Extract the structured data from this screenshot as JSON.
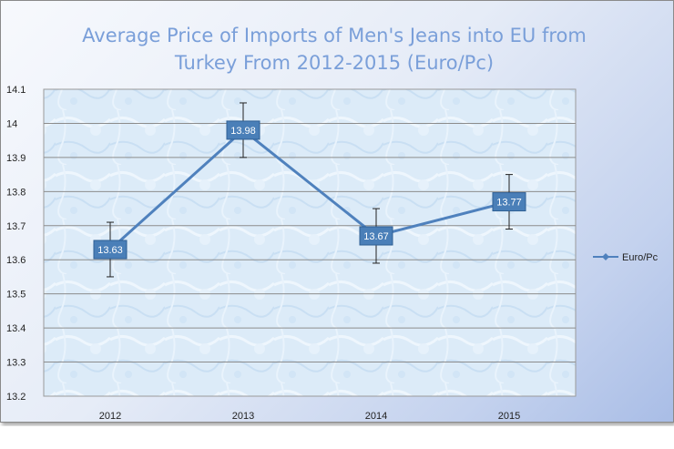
{
  "chart_data": {
    "type": "line",
    "title_lines": [
      "Average Price of Imports of Men's Jeans into EU from",
      "Turkey From 2012-2015 (Euro/Pc)"
    ],
    "categories": [
      "2012",
      "2013",
      "2014",
      "2015"
    ],
    "series": [
      {
        "name": "Euro/Pc",
        "values": [
          13.63,
          13.98,
          13.67,
          13.77
        ],
        "labels": [
          "13.63",
          "13.98",
          "13.67",
          "13.77"
        ],
        "error": [
          0.08,
          0.08,
          0.08,
          0.08
        ],
        "color": "#4f81bd"
      }
    ],
    "ylim": [
      13.2,
      14.1
    ],
    "yticks": [
      "13.2",
      "13.3",
      "13.4",
      "13.5",
      "13.6",
      "13.7",
      "13.8",
      "13.9",
      "14",
      "14.1"
    ],
    "grid": true,
    "legend": "right",
    "xlabel": "",
    "ylabel": ""
  }
}
